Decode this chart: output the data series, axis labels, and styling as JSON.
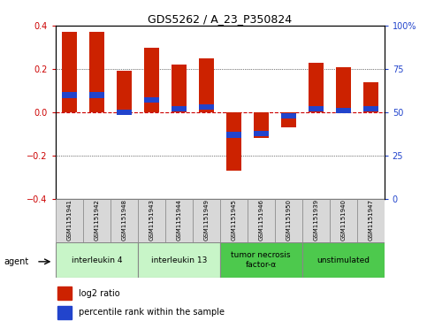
{
  "title": "GDS5262 / A_23_P350824",
  "samples": [
    "GSM1151941",
    "GSM1151942",
    "GSM1151948",
    "GSM1151943",
    "GSM1151944",
    "GSM1151949",
    "GSM1151945",
    "GSM1151946",
    "GSM1151950",
    "GSM1151939",
    "GSM1151940",
    "GSM1151947"
  ],
  "log2_ratio": [
    0.37,
    0.37,
    0.19,
    0.3,
    0.22,
    0.25,
    -0.27,
    -0.12,
    -0.07,
    0.23,
    0.21,
    0.14
  ],
  "percentile": [
    60,
    60,
    50,
    57,
    52,
    53,
    37,
    38,
    48,
    52,
    51,
    52
  ],
  "agents": [
    {
      "label": "interleukin 4",
      "start": 0,
      "end": 3,
      "color": "#c8f5c8"
    },
    {
      "label": "interleukin 13",
      "start": 3,
      "end": 6,
      "color": "#c8f5c8"
    },
    {
      "label": "tumor necrosis\nfactor-α",
      "start": 6,
      "end": 9,
      "color": "#4dc94d"
    },
    {
      "label": "unstimulated",
      "start": 9,
      "end": 12,
      "color": "#4dc94d"
    }
  ],
  "bar_color": "#cc2200",
  "blue_color": "#2244cc",
  "ylim": [
    -0.4,
    0.4
  ],
  "yticks_left": [
    -0.4,
    -0.2,
    0.0,
    0.2,
    0.4
  ],
  "yticks_right_vals": [
    -0.4,
    -0.2,
    0.0,
    0.2,
    0.4
  ],
  "yticks_right_labels": [
    "0",
    "25",
    "50",
    "75",
    "100%"
  ],
  "hline_color": "#cc0000",
  "bar_width": 0.55
}
